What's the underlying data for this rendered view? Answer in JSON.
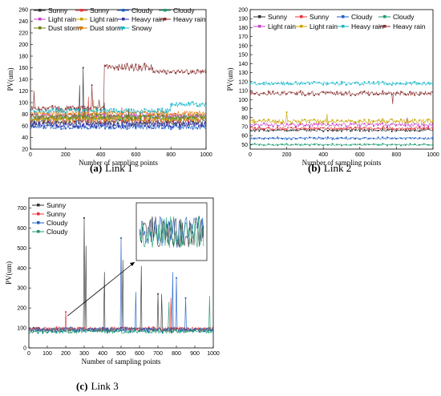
{
  "figure": {
    "panels": [
      {
        "caption_label": "(a)",
        "caption_text": "Link 1",
        "chart_data": {
          "type": "line",
          "xlabel": "Number of sampling points",
          "ylabel": "PV(um)",
          "xlim": [
            0,
            1000
          ],
          "ylim": [
            20,
            260
          ],
          "xticks": [
            "0",
            "200",
            "400",
            "600",
            "800",
            "1000"
          ],
          "yticks": [
            "20",
            "40",
            "60",
            "80",
            "100",
            "120",
            "140",
            "160",
            "180",
            "200",
            "220",
            "240",
            "260"
          ],
          "legend_columns": 4,
          "legend_placement": "top",
          "series": [
            {
              "name": "Sunny",
              "color": "#333333",
              "marker": "square",
              "base": 66,
              "noise": 5,
              "spikes": [
                [
                  280,
                  130
                ],
                [
                  300,
                  160
                ],
                [
                  310,
                  95
                ],
                [
                  420,
                  100
                ],
                [
                  560,
                  90
                ]
              ]
            },
            {
              "name": "Sunny",
              "color": "#e8343a",
              "marker": "circle",
              "base": 70,
              "noise": 5,
              "spikes": [
                [
                  330,
                  110
                ],
                [
                  520,
                  92
                ]
              ]
            },
            {
              "name": "Cloudy",
              "color": "#1f5fc6",
              "marker": "triangle",
              "base": 58,
              "noise": 4,
              "spikes": [
                [
                  260,
                  80
                ]
              ]
            },
            {
              "name": "Cloudy",
              "color": "#199b6f",
              "marker": "triangle-down",
              "base": 74,
              "noise": 5,
              "spikes": [
                [
                  380,
                  95
                ]
              ]
            },
            {
              "name": "Light rain",
              "color": "#c742c7",
              "marker": "diamond",
              "base": 78,
              "noise": 4,
              "spikes": []
            },
            {
              "name": "Light rain",
              "color": "#c9a300",
              "marker": "triangle-left",
              "base": 72,
              "noise": 4,
              "spikes": [
                [
                  360,
                  105
                ]
              ]
            },
            {
              "name": "Heavy rain",
              "color": "#2f2fa8",
              "marker": "triangle-right",
              "base": 62,
              "noise": 5,
              "spikes": []
            },
            {
              "name": "Heavy rain",
              "color": "#8a2d2d",
              "marker": "hexagon",
              "base": 90,
              "noise": 5,
              "spikes": [
                [
                  20,
                  120
                ],
                [
                  350,
                  130
                ],
                [
                  390,
                  105
                ]
              ]
            },
            {
              "name": "Dust storm",
              "color": "#6a7f10",
              "marker": "star",
              "base": 76,
              "noise": 4,
              "spikes": []
            },
            {
              "name": "Dust storm",
              "color": "#e07a00",
              "marker": "pentagon",
              "base": 82,
              "noise": 4,
              "spikes": []
            },
            {
              "name": "Snowy",
              "color": "#17b7c9",
              "marker": "circle",
              "base": 86,
              "noise": 4,
              "spikes": []
            }
          ],
          "level_segments": [
            {
              "series_index": 7,
              "from_x": 420,
              "to_x": 700,
              "value": 160,
              "noise": 7
            },
            {
              "series_index": 7,
              "from_x": 700,
              "to_x": 1000,
              "value": 153,
              "noise": 4
            },
            {
              "series_index": 10,
              "from_x": 800,
              "to_x": 1000,
              "value": 97,
              "noise": 5
            }
          ]
        }
      },
      {
        "caption_label": "(b)",
        "caption_text": "Link 2",
        "chart_data": {
          "type": "line",
          "xlabel": "Number of sampling points",
          "ylabel": "PV(um)",
          "xlim": [
            0,
            1000
          ],
          "ylim": [
            45,
            200
          ],
          "xticks": [
            "0",
            "200",
            "400",
            "600",
            "800",
            "1000"
          ],
          "yticks": [
            "50",
            "60",
            "70",
            "80",
            "90",
            "100",
            "110",
            "120",
            "130",
            "140",
            "150",
            "160",
            "170",
            "180",
            "190",
            "200"
          ],
          "legend_columns": 4,
          "legend_placement": "top",
          "series": [
            {
              "name": "Sunny",
              "color": "#333333",
              "marker": "square",
              "base": 66,
              "noise": 1.5,
              "spikes": []
            },
            {
              "name": "Sunny",
              "color": "#e8343a",
              "marker": "circle",
              "base": 68,
              "noise": 1.5,
              "spikes": []
            },
            {
              "name": "Cloudy",
              "color": "#1f5fc6",
              "marker": "triangle",
              "base": 57,
              "noise": 1.2,
              "spikes": []
            },
            {
              "name": "Cloudy",
              "color": "#199b6f",
              "marker": "triangle-down",
              "base": 50,
              "noise": 1.0,
              "spikes": []
            },
            {
              "name": "Light rain",
              "color": "#c742c7",
              "marker": "diamond",
              "base": 72,
              "noise": 2.0,
              "spikes": [
                [
                  860,
                  80
                ]
              ]
            },
            {
              "name": "Light rain",
              "color": "#c9a300",
              "marker": "triangle-left",
              "base": 76,
              "noise": 2.5,
              "spikes": [
                [
                  200,
                  86
                ],
                [
                  420,
                  84
                ]
              ]
            },
            {
              "name": "Heavy rain",
              "color": "#17b7c9",
              "marker": "triangle-right",
              "base": 118,
              "noise": 2.0,
              "spikes": []
            },
            {
              "name": "Heavy rain",
              "color": "#8a2d2d",
              "marker": "hexagon",
              "base": 107,
              "noise": 2.5,
              "spikes": [
                [
                  780,
                  95
                ]
              ]
            }
          ]
        }
      },
      {
        "caption_label": "(c)",
        "caption_text": "Link 3",
        "chart_data": {
          "type": "line",
          "xlabel": "Number of sampling points",
          "ylabel": "PV(um)",
          "xlim": [
            0,
            1000
          ],
          "ylim": [
            0,
            750
          ],
          "xticks": [
            "0",
            "100",
            "200",
            "300",
            "400",
            "500",
            "600",
            "700",
            "800",
            "900",
            "1000"
          ],
          "yticks": [
            "0",
            "100",
            "200",
            "300",
            "400",
            "500",
            "600",
            "700"
          ],
          "legend_columns": 1,
          "legend_placement": "top",
          "inset": {
            "label": "inset-zoom",
            "arrow_from_x": 210,
            "arrow_from_y": 160
          },
          "series": [
            {
              "name": "Sunny",
              "color": "#333333",
              "marker": "square",
              "base": 92,
              "noise": 10,
              "spikes": [
                [
                  300,
                  650
                ],
                [
                  310,
                  510
                ],
                [
                  410,
                  380
                ],
                [
                  510,
                  440
                ],
                [
                  610,
                  410
                ],
                [
                  700,
                  270
                ],
                [
                  720,
                  270
                ]
              ]
            },
            {
              "name": "Sunny",
              "color": "#e8343a",
              "marker": "circle",
              "base": 95,
              "noise": 10,
              "spikes": [
                [
                  200,
                  180
                ],
                [
                  770,
                  250
                ]
              ]
            },
            {
              "name": "Cloudy",
              "color": "#1f5fc6",
              "marker": "triangle",
              "base": 90,
              "noise": 12,
              "spikes": [
                [
                  500,
                  550
                ],
                [
                  580,
                  280
                ],
                [
                  780,
                  380
                ],
                [
                  800,
                  350
                ],
                [
                  850,
                  250
                ]
              ]
            },
            {
              "name": "Cloudy",
              "color": "#199b6f",
              "marker": "triangle-down",
              "base": 82,
              "noise": 9,
              "spikes": [
                [
                  760,
                  230
                ],
                [
                  980,
                  260
                ]
              ]
            }
          ]
        }
      }
    ]
  }
}
